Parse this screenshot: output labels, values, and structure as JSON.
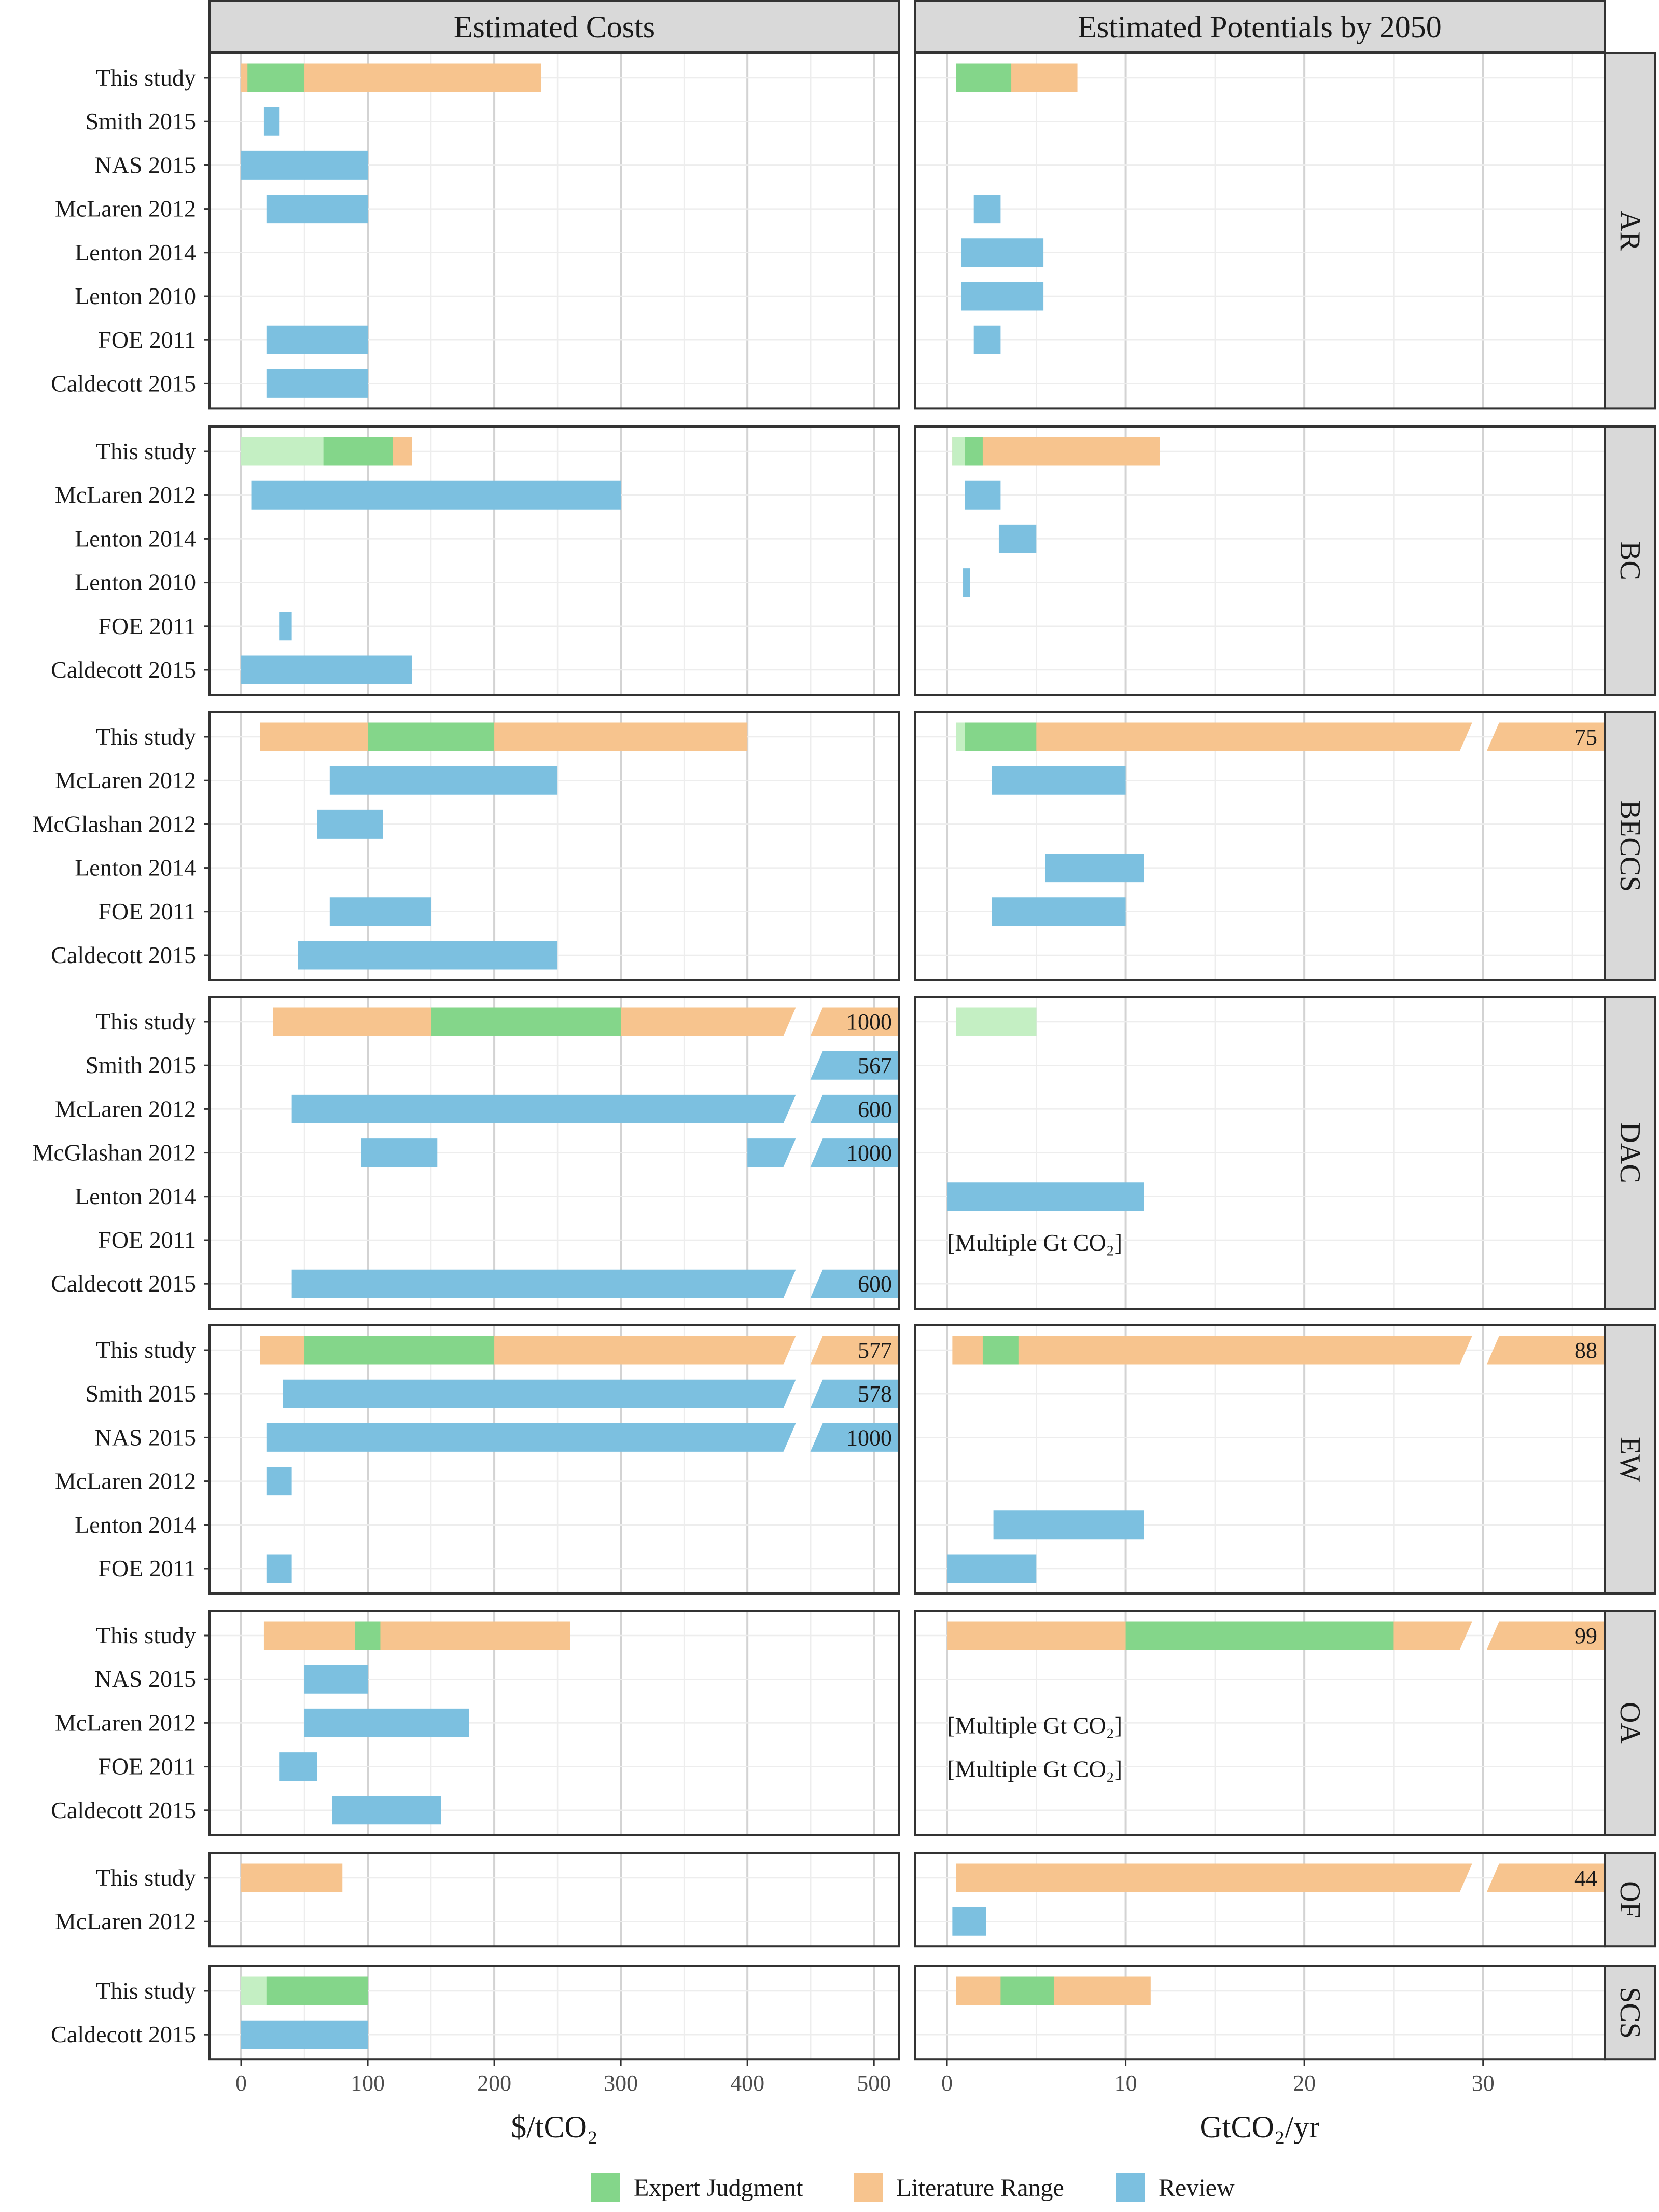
{
  "chart_data": {
    "type": "bar",
    "subtype": "faceted range bars",
    "columns": [
      {
        "title": "Estimated Costs",
        "xlabel": "$/tCO₂",
        "xlim": [
          -25,
          520
        ],
        "ticks": [
          0,
          100,
          200,
          300,
          400,
          500
        ],
        "break_at": 444
      },
      {
        "title": "Estimated Potentials by 2050",
        "xlabel": "GtCO₂/yr",
        "xlim": [
          -1.8,
          36.8
        ],
        "ticks": [
          0,
          10,
          20,
          30
        ],
        "break_at": 29.8
      }
    ],
    "legend": {
      "position": "bottom",
      "items": [
        {
          "key": "expert",
          "label": "Expert Judgment",
          "color": "#84d68a"
        },
        {
          "key": "literature",
          "label": "Literature Range",
          "color": "#f7c48e"
        },
        {
          "key": "review",
          "label": "Review",
          "color": "#7cc0e0"
        }
      ]
    },
    "facets": [
      {
        "name": "AR",
        "rows": [
          {
            "label": "This study",
            "cost": [
              {
                "type": "literature",
                "start": 0,
                "end": 237
              },
              {
                "type": "expert",
                "start": 5,
                "end": 50
              }
            ],
            "potential": [
              {
                "type": "literature",
                "start": 0.5,
                "end": 7.3
              },
              {
                "type": "expert",
                "start": 0.5,
                "end": 3.6
              }
            ]
          },
          {
            "label": "Smith 2015",
            "cost": [
              {
                "type": "review",
                "start": 18,
                "end": 30
              }
            ],
            "potential": []
          },
          {
            "label": "NAS 2015",
            "cost": [
              {
                "type": "review",
                "start": 0,
                "end": 100
              }
            ],
            "potential": []
          },
          {
            "label": "McLaren 2012",
            "cost": [
              {
                "type": "review",
                "start": 20,
                "end": 100
              }
            ],
            "potential": [
              {
                "type": "review",
                "start": 1.5,
                "end": 3
              }
            ]
          },
          {
            "label": "Lenton 2014",
            "cost": [],
            "potential": [
              {
                "type": "review",
                "start": 0.8,
                "end": 5.4
              }
            ]
          },
          {
            "label": "Lenton 2010",
            "cost": [],
            "potential": [
              {
                "type": "review",
                "start": 0.8,
                "end": 5.4
              }
            ]
          },
          {
            "label": "FOE 2011",
            "cost": [
              {
                "type": "review",
                "start": 20,
                "end": 100
              }
            ],
            "potential": [
              {
                "type": "review",
                "start": 1.5,
                "end": 3
              }
            ]
          },
          {
            "label": "Caldecott 2015",
            "cost": [
              {
                "type": "review",
                "start": 20,
                "end": 100
              }
            ],
            "potential": []
          }
        ]
      },
      {
        "name": "BC",
        "rows": [
          {
            "label": "This study",
            "cost": [
              {
                "type": "literature",
                "start": 0,
                "end": 135
              },
              {
                "type": "expert",
                "start": 0,
                "end": 120,
                "light_end": 65
              }
            ],
            "potential": [
              {
                "type": "literature",
                "start": 0.3,
                "end": 11.9
              },
              {
                "type": "expert",
                "start": 0.3,
                "end": 2,
                "light_end": 1
              }
            ]
          },
          {
            "label": "McLaren 2012",
            "cost": [
              {
                "type": "review",
                "start": 8,
                "end": 300
              }
            ],
            "potential": [
              {
                "type": "review",
                "start": 1,
                "end": 3
              }
            ]
          },
          {
            "label": "Lenton 2014",
            "cost": [],
            "potential": [
              {
                "type": "review",
                "start": 2.9,
                "end": 5
              }
            ]
          },
          {
            "label": "Lenton 2010",
            "cost": [],
            "potential": [
              {
                "type": "review",
                "start": 0.9,
                "end": 1.3
              }
            ]
          },
          {
            "label": "FOE 2011",
            "cost": [
              {
                "type": "review",
                "start": 30,
                "end": 40
              }
            ],
            "potential": []
          },
          {
            "label": "Caldecott 2015",
            "cost": [
              {
                "type": "review",
                "start": 0,
                "end": 135
              }
            ],
            "potential": []
          }
        ]
      },
      {
        "name": "BECCS",
        "rows": [
          {
            "label": "This study",
            "cost": [
              {
                "type": "literature",
                "start": 15,
                "end": 400
              },
              {
                "type": "expert",
                "start": 100,
                "end": 200
              }
            ],
            "potential": [
              {
                "type": "literature",
                "start": 0.5,
                "end": 75,
                "label": "75"
              },
              {
                "type": "expert",
                "start": 0.5,
                "end": 5,
                "light_end": 1
              }
            ]
          },
          {
            "label": "McLaren 2012",
            "cost": [
              {
                "type": "review",
                "start": 70,
                "end": 250
              }
            ],
            "potential": [
              {
                "type": "review",
                "start": 2.5,
                "end": 10
              }
            ]
          },
          {
            "label": "McGlashan 2012",
            "cost": [
              {
                "type": "review",
                "start": 60,
                "end": 112
              }
            ],
            "potential": []
          },
          {
            "label": "Lenton 2014",
            "cost": [],
            "potential": [
              {
                "type": "review",
                "start": 5.5,
                "end": 11
              }
            ]
          },
          {
            "label": "FOE 2011",
            "cost": [
              {
                "type": "review",
                "start": 70,
                "end": 150
              }
            ],
            "potential": [
              {
                "type": "review",
                "start": 2.5,
                "end": 10
              }
            ]
          },
          {
            "label": "Caldecott 2015",
            "cost": [
              {
                "type": "review",
                "start": 45,
                "end": 250
              }
            ],
            "potential": []
          }
        ]
      },
      {
        "name": "DAC",
        "rows": [
          {
            "label": "This study",
            "cost": [
              {
                "type": "literature",
                "start": 25,
                "end": 1000,
                "label": "1000"
              },
              {
                "type": "expert",
                "start": 150,
                "end": 300
              }
            ],
            "potential": [
              {
                "type": "expert",
                "start": 0.5,
                "end": 5,
                "light_end": 5
              }
            ]
          },
          {
            "label": "Smith 2015",
            "cost": [
              {
                "type": "review",
                "start": 435,
                "end": 567,
                "label": "567"
              }
            ],
            "potential": []
          },
          {
            "label": "McLaren 2012",
            "cost": [
              {
                "type": "review",
                "start": 40,
                "end": 600,
                "label": "600"
              }
            ],
            "potential": []
          },
          {
            "label": "McGlashan 2012",
            "cost": [
              {
                "type": "review",
                "start": 95,
                "end": 155
              },
              {
                "type": "review",
                "start": 400,
                "end": 1000,
                "label": "1000"
              }
            ],
            "potential": []
          },
          {
            "label": "Lenton 2014",
            "cost": [],
            "potential": [
              {
                "type": "review",
                "start": 0,
                "end": 11
              }
            ]
          },
          {
            "label": "FOE 2011",
            "cost": [],
            "potential": [],
            "potential_note": "[Multiple Gt CO₂]"
          },
          {
            "label": "Caldecott 2015",
            "cost": [
              {
                "type": "review",
                "start": 40,
                "end": 600,
                "label": "600"
              }
            ],
            "potential": []
          }
        ]
      },
      {
        "name": "EW",
        "rows": [
          {
            "label": "This study",
            "cost": [
              {
                "type": "literature",
                "start": 15,
                "end": 577,
                "label": "577"
              },
              {
                "type": "expert",
                "start": 50,
                "end": 200
              }
            ],
            "potential": [
              {
                "type": "literature",
                "start": 0.3,
                "end": 88,
                "label": "88"
              },
              {
                "type": "expert",
                "start": 2,
                "end": 4
              }
            ]
          },
          {
            "label": "Smith 2015",
            "cost": [
              {
                "type": "review",
                "start": 33,
                "end": 578,
                "label": "578"
              }
            ],
            "potential": []
          },
          {
            "label": "NAS 2015",
            "cost": [
              {
                "type": "review",
                "start": 20,
                "end": 1000,
                "label": "1000"
              }
            ],
            "potential": []
          },
          {
            "label": "McLaren 2012",
            "cost": [
              {
                "type": "review",
                "start": 20,
                "end": 40
              }
            ],
            "potential": []
          },
          {
            "label": "Lenton 2014",
            "cost": [],
            "potential": [
              {
                "type": "review",
                "start": 2.6,
                "end": 11
              }
            ]
          },
          {
            "label": "FOE 2011",
            "cost": [
              {
                "type": "review",
                "start": 20,
                "end": 40
              }
            ],
            "potential": [
              {
                "type": "review",
                "start": 0,
                "end": 5
              }
            ]
          }
        ]
      },
      {
        "name": "OA",
        "rows": [
          {
            "label": "This study",
            "cost": [
              {
                "type": "literature",
                "start": 18,
                "end": 260
              },
              {
                "type": "expert",
                "start": 90,
                "end": 110
              }
            ],
            "potential": [
              {
                "type": "literature",
                "start": 0,
                "end": 99,
                "label": "99"
              },
              {
                "type": "expert",
                "start": 10,
                "end": 25
              }
            ]
          },
          {
            "label": "NAS 2015",
            "cost": [
              {
                "type": "review",
                "start": 50,
                "end": 100
              }
            ],
            "potential": []
          },
          {
            "label": "McLaren 2012",
            "cost": [
              {
                "type": "review",
                "start": 50,
                "end": 180
              }
            ],
            "potential": [],
            "potential_note": "[Multiple Gt CO₂]"
          },
          {
            "label": "FOE 2011",
            "cost": [
              {
                "type": "review",
                "start": 30,
                "end": 60
              }
            ],
            "potential": [],
            "potential_note": "[Multiple Gt CO₂]"
          },
          {
            "label": "Caldecott 2015",
            "cost": [
              {
                "type": "review",
                "start": 72,
                "end": 158
              }
            ],
            "potential": []
          }
        ]
      },
      {
        "name": "OF",
        "rows": [
          {
            "label": "This study",
            "cost": [
              {
                "type": "literature",
                "start": 0,
                "end": 80
              }
            ],
            "potential": [
              {
                "type": "literature",
                "start": 0.5,
                "end": 44,
                "label": "44"
              }
            ]
          },
          {
            "label": "McLaren 2012",
            "cost": [],
            "potential": [
              {
                "type": "review",
                "start": 0.3,
                "end": 2.2
              }
            ]
          }
        ]
      },
      {
        "name": "SCS",
        "rows": [
          {
            "label": "This study",
            "cost": [
              {
                "type": "expert",
                "start": 0,
                "end": 100,
                "light_end": 20
              }
            ],
            "potential": [
              {
                "type": "literature",
                "start": 0.5,
                "end": 11.4
              },
              {
                "type": "expert",
                "start": 3,
                "end": 6
              }
            ]
          },
          {
            "label": "Caldecott 2015",
            "cost": [
              {
                "type": "review",
                "start": 0,
                "end": 100
              }
            ],
            "potential": []
          }
        ]
      }
    ]
  }
}
